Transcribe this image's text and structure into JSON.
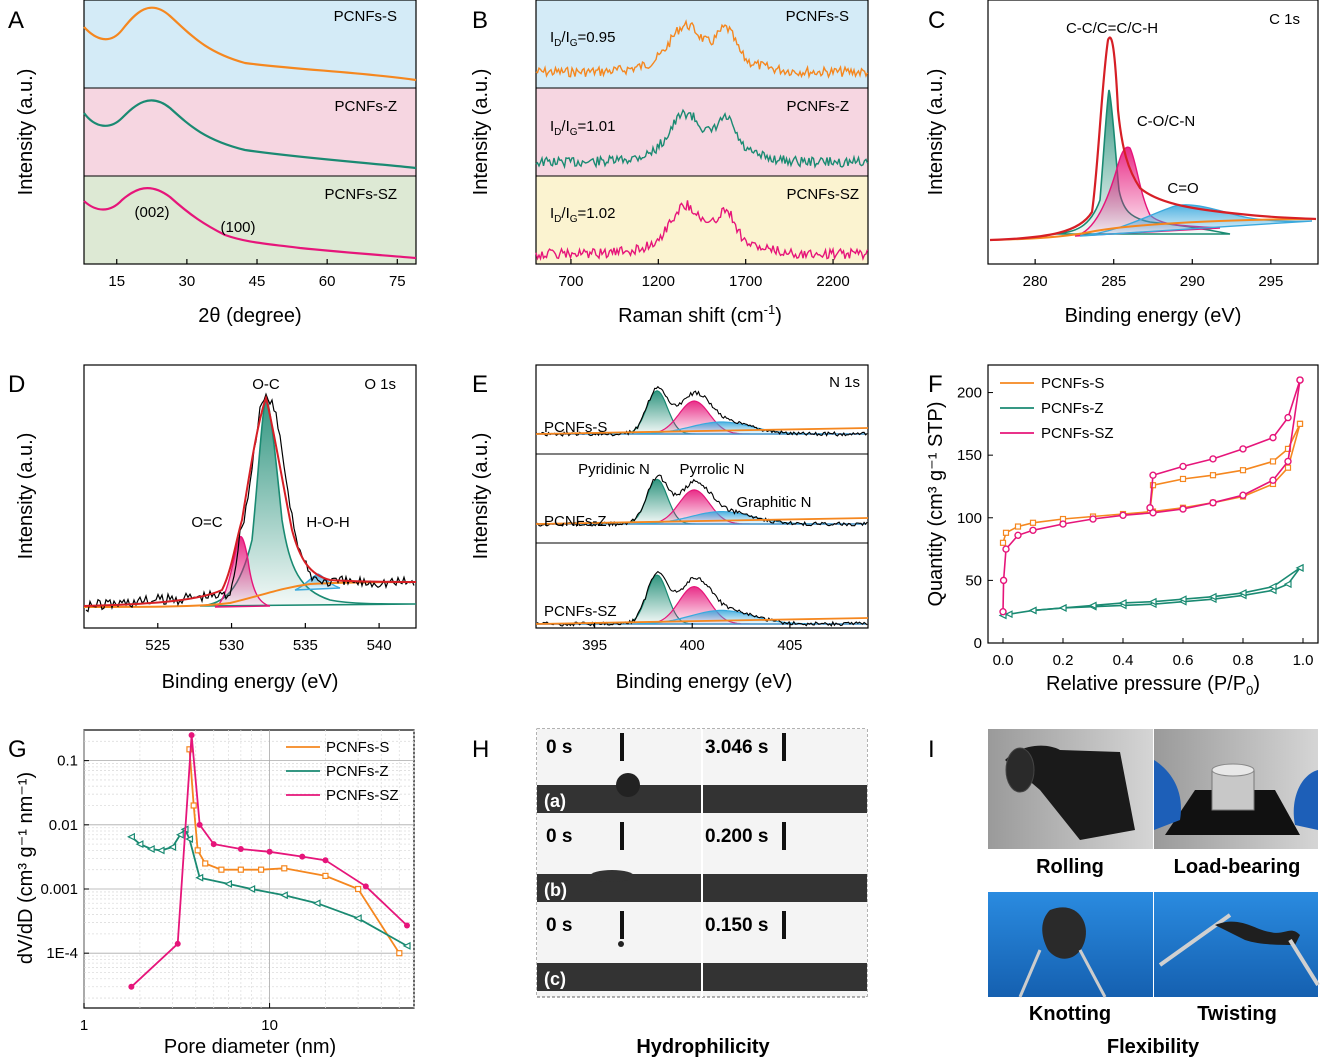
{
  "colors": {
    "orange": "#f5871f",
    "teal": "#1a8a72",
    "magenta": "#e6157a",
    "red": "#d61f26",
    "lightblue": "#d4ebf7",
    "pink": "#f6d6e1",
    "green": "#dde9d4",
    "yellow": "#fbf3d0",
    "blue": "#3aa9dd",
    "gray": "#bdbdbd"
  },
  "chart_data": [
    {
      "panel": "A",
      "type": "line",
      "xlabel": "2θ (degree)",
      "ylabel": "Intensity (a.u.)",
      "xlim": [
        8,
        79
      ],
      "xticks": [
        "15",
        "30",
        "45",
        "60",
        "75"
      ],
      "xtick_values": [
        15,
        30,
        45,
        60,
        75
      ],
      "series": [
        {
          "name": "PCNFs-S",
          "peak_x": 24
        },
        {
          "name": "PCNFs-Z",
          "peak_x": 24
        },
        {
          "name": "PCNFs-SZ",
          "peak_x": 24
        }
      ],
      "annotations": [
        "(002)",
        "(100)"
      ]
    },
    {
      "panel": "B",
      "type": "line",
      "xlabel": "Raman shift (cm",
      "xlabel_sup": "-1",
      "xlabel_end": ")",
      "ylabel": "Intensity (a.u.)",
      "xlim": [
        500,
        2400
      ],
      "xticks": [
        "700",
        "1200",
        "1700",
        "2200"
      ],
      "xtick_values": [
        700,
        1200,
        1700,
        2200
      ],
      "series": [
        {
          "name": "PCNFs-S",
          "ratio_label": "I",
          "ratio_value": "=0.95",
          "ID_IG": 0.95
        },
        {
          "name": "PCNFs-Z",
          "ratio_label": "I",
          "ratio_value": "=1.01",
          "ID_IG": 1.01
        },
        {
          "name": "PCNFs-SZ",
          "ratio_label": "I",
          "ratio_value": "=1.02",
          "ID_IG": 1.02
        }
      ],
      "sub_D": "D",
      "sub_G": "G",
      "ratio_slash": "/I"
    },
    {
      "panel": "C",
      "type": "line",
      "title": "C 1s",
      "xlabel": "Binding energy (eV)",
      "ylabel": "Intensity (a.u.)",
      "xlim": [
        277,
        298
      ],
      "xticks": [
        "280",
        "285",
        "290",
        "295"
      ],
      "xtick_values": [
        280,
        285,
        290,
        295
      ],
      "peaks": [
        {
          "name": "C-C/C=C/C-H",
          "center": 284.8
        },
        {
          "name": "C-O/C-N",
          "center": 286.0
        },
        {
          "name": "C=O",
          "center": 288.8
        }
      ]
    },
    {
      "panel": "D",
      "type": "line",
      "title": "O 1s",
      "xlabel": "Binding energy (eV)",
      "ylabel": "Intensity (a.u.)",
      "xlim": [
        520,
        542.5
      ],
      "xticks": [
        "525",
        "530",
        "535",
        "540"
      ],
      "xtick_values": [
        525,
        530,
        535,
        540
      ],
      "peaks": [
        {
          "name": "O-C",
          "center": 532.5
        },
        {
          "name": "O=C",
          "center": 530.7
        },
        {
          "name": "H-O-H",
          "center": 536.1
        }
      ]
    },
    {
      "panel": "E",
      "type": "line",
      "title": "N 1s",
      "xlabel": "Binding energy (eV)",
      "ylabel": "Intensity (a.u.)",
      "xlim": [
        392,
        409
      ],
      "xticks": [
        "395",
        "400",
        "405"
      ],
      "xtick_values": [
        395,
        400,
        405
      ],
      "series": [
        "PCNFs-S",
        "PCNFs-Z",
        "PCNFs-SZ"
      ],
      "peaks": [
        {
          "name": "Pyridinic N",
          "center": 398.2
        },
        {
          "name": "Pyrrolic N",
          "center": 400.1
        },
        {
          "name": "Graphitic N",
          "center": 401.5
        }
      ]
    },
    {
      "panel": "F",
      "type": "line",
      "xlabel": "Relative pressure (P/P",
      "xlabel_sub": "0",
      "xlabel_end": ")",
      "ylabel": "Quantity (cm³ g⁻¹ STP)",
      "xlim": [
        -0.05,
        1.05
      ],
      "ylim": [
        0,
        222
      ],
      "xticks": [
        "0.0",
        "0.2",
        "0.4",
        "0.6",
        "0.8",
        "1.0"
      ],
      "xtick_values": [
        0,
        0.2,
        0.4,
        0.6,
        0.8,
        1.0
      ],
      "yticks": [
        "0",
        "50",
        "100",
        "150",
        "200"
      ],
      "ytick_values": [
        0,
        50,
        100,
        150,
        200
      ],
      "series": [
        {
          "name": "PCNFs-S",
          "adsorption": [
            [
              0,
              80
            ],
            [
              0.01,
              88
            ],
            [
              0.05,
              93
            ],
            [
              0.1,
              96
            ],
            [
              0.2,
              99
            ],
            [
              0.3,
              101
            ],
            [
              0.4,
              103
            ],
            [
              0.5,
              105
            ],
            [
              0.6,
              108
            ],
            [
              0.7,
              112
            ],
            [
              0.8,
              117
            ],
            [
              0.9,
              127
            ],
            [
              0.95,
              140
            ],
            [
              0.99,
              175
            ]
          ],
          "desorption": [
            [
              0.99,
              175
            ],
            [
              0.95,
              155
            ],
            [
              0.9,
              145
            ],
            [
              0.8,
              138
            ],
            [
              0.7,
              134
            ],
            [
              0.6,
              131
            ],
            [
              0.5,
              126
            ],
            [
              0.49,
              106
            ]
          ]
        },
        {
          "name": "PCNFs-Z",
          "adsorption": [
            [
              0,
              22
            ],
            [
              0.02,
              23
            ],
            [
              0.1,
              26
            ],
            [
              0.2,
              28
            ],
            [
              0.3,
              29
            ],
            [
              0.4,
              30
            ],
            [
              0.5,
              31
            ],
            [
              0.6,
              33
            ],
            [
              0.7,
              35
            ],
            [
              0.8,
              38
            ],
            [
              0.9,
              42
            ],
            [
              0.95,
              47
            ],
            [
              0.99,
              60
            ]
          ],
          "desorption": [
            [
              0.99,
              60
            ],
            [
              0.9,
              45
            ],
            [
              0.8,
              40
            ],
            [
              0.7,
              37
            ],
            [
              0.6,
              35
            ],
            [
              0.5,
              33
            ],
            [
              0.4,
              32
            ],
            [
              0.3,
              30
            ],
            [
              0.2,
              28
            ],
            [
              0.1,
              26
            ]
          ]
        },
        {
          "name": "PCNFs-SZ",
          "adsorption": [
            [
              0,
              25
            ],
            [
              0.002,
              50
            ],
            [
              0.01,
              75
            ],
            [
              0.05,
              86
            ],
            [
              0.1,
              90
            ],
            [
              0.2,
              95
            ],
            [
              0.3,
              99
            ],
            [
              0.4,
              102
            ],
            [
              0.5,
              104
            ],
            [
              0.6,
              107
            ],
            [
              0.7,
              112
            ],
            [
              0.8,
              118
            ],
            [
              0.9,
              130
            ],
            [
              0.95,
              145
            ],
            [
              0.99,
              210
            ]
          ],
          "desorption": [
            [
              0.99,
              210
            ],
            [
              0.95,
              180
            ],
            [
              0.9,
              164
            ],
            [
              0.8,
              155
            ],
            [
              0.7,
              147
            ],
            [
              0.6,
              141
            ],
            [
              0.5,
              134
            ],
            [
              0.49,
              108
            ]
          ]
        }
      ]
    },
    {
      "panel": "G",
      "type": "line",
      "xscale": "log",
      "yscale": "log",
      "xlabel": "Pore diameter (nm)",
      "ylabel": "dV/dD (cm³ g⁻¹ nm⁻¹)",
      "xlim": [
        1,
        60
      ],
      "ylim": [
        1.4e-05,
        0.3
      ],
      "xticks": [
        "1",
        "10"
      ],
      "xtick_values": [
        1,
        10
      ],
      "yticks": [
        "1E-4",
        "0.001",
        "0.01",
        "0.1"
      ],
      "ytick_values": [
        0.0001,
        0.001,
        0.01,
        0.1
      ],
      "series": [
        {
          "name": "PCNFs-S",
          "x": [
            3.7,
            3.9,
            4.1,
            4.5,
            5.5,
            7,
            9,
            12,
            20,
            30,
            50
          ],
          "y": [
            0.15,
            0.02,
            0.004,
            0.0025,
            0.002,
            0.002,
            0.002,
            0.0021,
            0.0016,
            0.001,
            0.0001
          ]
        },
        {
          "name": "PCNFs-Z",
          "x": [
            1.8,
            2.0,
            2.3,
            2.6,
            3.0,
            3.3,
            3.5,
            3.7,
            4.2,
            6,
            8,
            12,
            18,
            30,
            55
          ],
          "y": [
            0.0065,
            0.005,
            0.0042,
            0.004,
            0.0045,
            0.007,
            0.0085,
            0.006,
            0.0015,
            0.0012,
            0.001,
            0.0008,
            0.0006,
            0.00035,
            0.00013
          ]
        },
        {
          "name": "PCNFs-SZ",
          "x": [
            1.8,
            3.2,
            3.8,
            4.2,
            5,
            7,
            10,
            15,
            20,
            33,
            55
          ],
          "y": [
            3e-05,
            0.00014,
            0.25,
            0.01,
            0.005,
            0.0042,
            0.0038,
            0.0032,
            0.0028,
            0.0011,
            0.00027
          ]
        }
      ]
    }
  ],
  "panel_letters": [
    "A",
    "B",
    "C",
    "D",
    "E",
    "F",
    "G",
    "H",
    "I"
  ],
  "panel_h": {
    "caption": "Hydrophilicity",
    "rows": [
      {
        "label": "(a)",
        "t0": "0 s",
        "t1": "3.046 s"
      },
      {
        "label": "(b)",
        "t0": "0 s",
        "t1": "0.200 s"
      },
      {
        "label": "(c)",
        "t0": "0 s",
        "t1": "0.150 s"
      }
    ]
  },
  "panel_i": {
    "caption": "Flexibility",
    "tiles": [
      "Rolling",
      "Load-bearing",
      "Knotting",
      "Twisting"
    ]
  }
}
